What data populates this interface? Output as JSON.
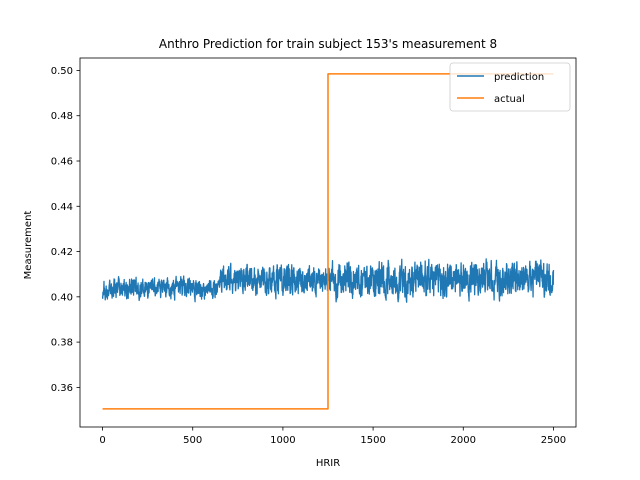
{
  "chart_data": {
    "type": "line",
    "title": "Anthro Prediction for train subject 153's measurement 8",
    "xlabel": "HRIR",
    "ylabel": "Measurement",
    "xlim": [
      -125,
      2625
    ],
    "ylim": [
      0.3425,
      0.5055
    ],
    "xticks": [
      0,
      500,
      1000,
      1500,
      2000,
      2500
    ],
    "xtick_labels": [
      "0",
      "500",
      "1000",
      "1500",
      "2000",
      "2500"
    ],
    "yticks": [
      0.36,
      0.38,
      0.4,
      0.42,
      0.44,
      0.46,
      0.48,
      0.5
    ],
    "ytick_labels": [
      "0.36",
      "0.38",
      "0.40",
      "0.42",
      "0.44",
      "0.46",
      "0.48",
      "0.50"
    ],
    "grid": false,
    "legend_position": "top-right",
    "series": [
      {
        "name": "prediction",
        "color": "#1f77b4",
        "x_start": 0,
        "x_end": 2500,
        "points": 2501,
        "segments": [
          {
            "x_from": 0,
            "x_to": 650,
            "mean": 0.4035,
            "band": [
              0.393,
              0.412
            ]
          },
          {
            "x_from": 650,
            "x_to": 1250,
            "mean": 0.4075,
            "band": [
              0.396,
              0.424
            ]
          },
          {
            "x_from": 1250,
            "x_to": 2500,
            "mean": 0.408,
            "band": [
              0.391,
              0.424
            ]
          }
        ]
      },
      {
        "name": "actual",
        "color": "#ff7f0e",
        "x": [
          0,
          1250,
          1250,
          2500
        ],
        "y": [
          0.3505,
          0.3505,
          0.4985,
          0.4985
        ]
      }
    ]
  }
}
